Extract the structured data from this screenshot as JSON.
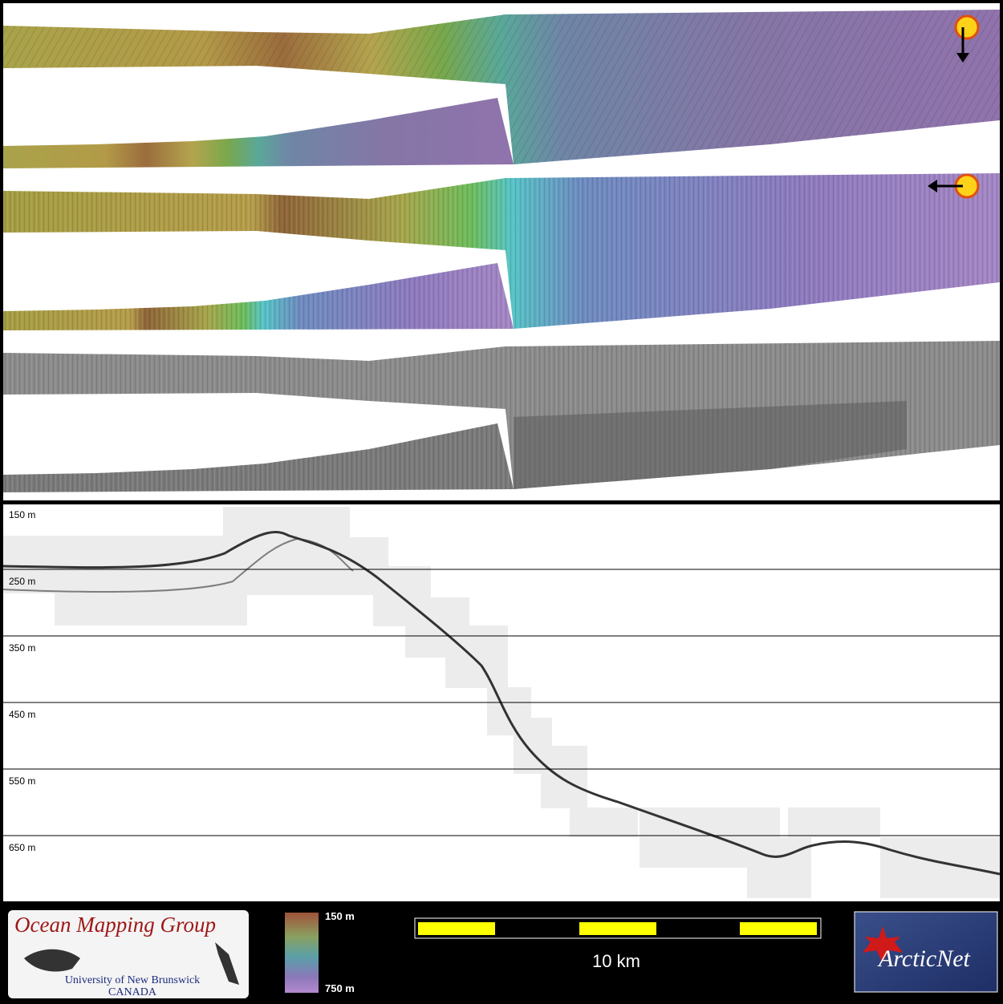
{
  "depth_axis": {
    "labels": [
      "150 m",
      "250 m",
      "350 m",
      "450 m",
      "550 m",
      "650 m"
    ]
  },
  "legend": {
    "top": "150 m",
    "bottom": "750 m"
  },
  "scale_bar": {
    "label": "10 km"
  },
  "logos": {
    "ocean_mapping_group": {
      "title": "Ocean Mapping Group",
      "university": "University of New Brunswick",
      "country": "CANADA"
    },
    "arcticnet": "ArcticNet"
  }
}
